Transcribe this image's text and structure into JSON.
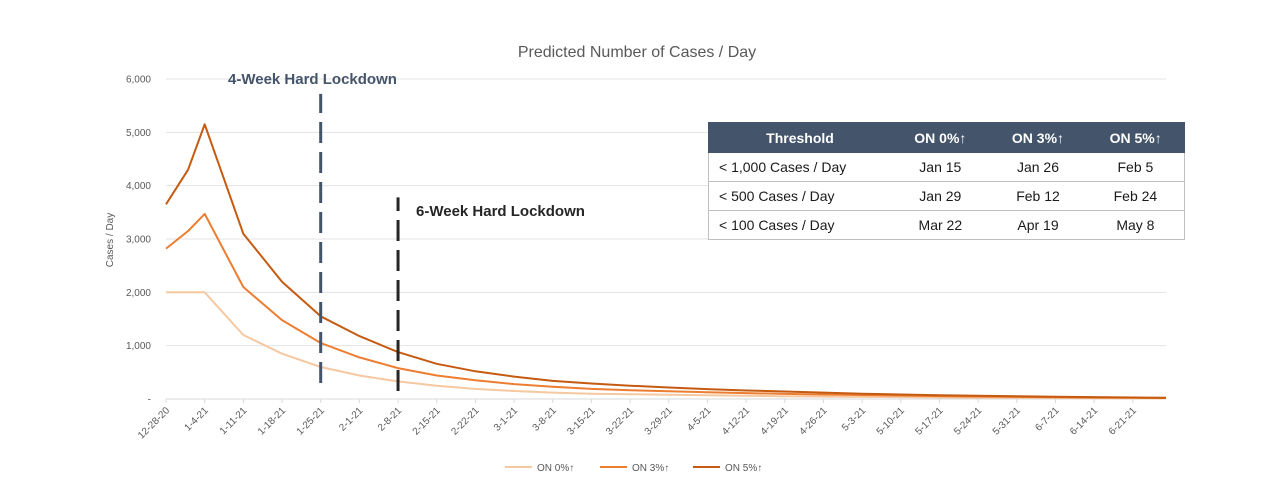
{
  "chart_data": {
    "type": "line",
    "title": "Predicted Number of Cases / Day",
    "xlabel": "",
    "ylabel": "Cases / Day",
    "ylim": [
      0,
      6000
    ],
    "y_ticks": [
      {
        "value": 0,
        "label": "-"
      },
      {
        "value": 1000,
        "label": "1,000"
      },
      {
        "value": 2000,
        "label": "2,000"
      },
      {
        "value": 3000,
        "label": "3,000"
      },
      {
        "value": 4000,
        "label": "4,000"
      },
      {
        "value": 5000,
        "label": "5,000"
      },
      {
        "value": 6000,
        "label": "6,000"
      }
    ],
    "x_tick_labels": [
      "12-28-20",
      "1-4-21",
      "1-11-21",
      "1-18-21",
      "1-25-21",
      "2-1-21",
      "2-8-21",
      "2-15-21",
      "2-22-21",
      "3-1-21",
      "3-8-21",
      "3-15-21",
      "3-22-21",
      "3-29-21",
      "4-5-21",
      "4-12-21",
      "4-19-21",
      "4-26-21",
      "5-3-21",
      "5-10-21",
      "5-17-21",
      "5-24-21",
      "5-31-21",
      "6-7-21",
      "6-14-21",
      "6-21-21"
    ],
    "x_start": "12-28-20",
    "x_end": "6-27-21",
    "grid": true,
    "legend_position": "bottom",
    "series": [
      {
        "name": "ON 0%↑",
        "color": "#f6c8a1",
        "points": [
          [
            "12-28-20",
            2000
          ],
          [
            "1-4-21",
            2000
          ],
          [
            "1-11-21",
            1200
          ],
          [
            "1-18-21",
            850
          ],
          [
            "1-25-21",
            600
          ],
          [
            "2-1-21",
            440
          ],
          [
            "2-8-21",
            330
          ],
          [
            "2-15-21",
            250
          ],
          [
            "2-22-21",
            190
          ],
          [
            "3-1-21",
            150
          ],
          [
            "3-8-21",
            120
          ],
          [
            "3-15-21",
            100
          ],
          [
            "3-22-21",
            90
          ],
          [
            "3-29-21",
            80
          ],
          [
            "4-5-21",
            70
          ],
          [
            "4-12-21",
            60
          ],
          [
            "4-19-21",
            50
          ],
          [
            "4-26-21",
            45
          ],
          [
            "5-3-21",
            40
          ],
          [
            "5-10-21",
            35
          ],
          [
            "5-17-21",
            30
          ],
          [
            "5-24-21",
            25
          ],
          [
            "5-31-21",
            22
          ],
          [
            "6-7-21",
            20
          ],
          [
            "6-14-21",
            17
          ],
          [
            "6-21-21",
            15
          ],
          [
            "6-27-21",
            12
          ]
        ]
      },
      {
        "name": "ON 3%↑",
        "color": "#ed7d31",
        "points": [
          [
            "12-28-20",
            2820
          ],
          [
            "1-1-21",
            3150
          ],
          [
            "1-4-21",
            3470
          ],
          [
            "1-11-21",
            2100
          ],
          [
            "1-18-21",
            1480
          ],
          [
            "1-25-21",
            1050
          ],
          [
            "2-1-21",
            780
          ],
          [
            "2-8-21",
            580
          ],
          [
            "2-15-21",
            440
          ],
          [
            "2-22-21",
            350
          ],
          [
            "3-1-21",
            280
          ],
          [
            "3-8-21",
            230
          ],
          [
            "3-15-21",
            190
          ],
          [
            "3-22-21",
            165
          ],
          [
            "3-29-21",
            145
          ],
          [
            "4-5-21",
            125
          ],
          [
            "4-12-21",
            110
          ],
          [
            "4-19-21",
            95
          ],
          [
            "4-26-21",
            85
          ],
          [
            "5-3-21",
            75
          ],
          [
            "5-10-21",
            65
          ],
          [
            "5-17-21",
            55
          ],
          [
            "5-24-21",
            47
          ],
          [
            "5-31-21",
            40
          ],
          [
            "6-7-21",
            33
          ],
          [
            "6-14-21",
            27
          ],
          [
            "6-21-21",
            22
          ],
          [
            "6-27-21",
            18
          ]
        ]
      },
      {
        "name": "ON 5%↑",
        "color": "#c55a11",
        "points": [
          [
            "12-28-20",
            3650
          ],
          [
            "1-1-21",
            4300
          ],
          [
            "1-4-21",
            5150
          ],
          [
            "1-11-21",
            3100
          ],
          [
            "1-18-21",
            2200
          ],
          [
            "1-25-21",
            1550
          ],
          [
            "2-1-21",
            1180
          ],
          [
            "2-8-21",
            880
          ],
          [
            "2-15-21",
            660
          ],
          [
            "2-22-21",
            520
          ],
          [
            "3-1-21",
            420
          ],
          [
            "3-8-21",
            340
          ],
          [
            "3-15-21",
            290
          ],
          [
            "3-22-21",
            250
          ],
          [
            "3-29-21",
            215
          ],
          [
            "4-5-21",
            185
          ],
          [
            "4-12-21",
            160
          ],
          [
            "4-19-21",
            140
          ],
          [
            "4-26-21",
            120
          ],
          [
            "5-3-21",
            100
          ],
          [
            "5-10-21",
            85
          ],
          [
            "5-17-21",
            72
          ],
          [
            "5-24-21",
            60
          ],
          [
            "5-31-21",
            50
          ],
          [
            "6-7-21",
            42
          ],
          [
            "6-14-21",
            35
          ],
          [
            "6-21-21",
            28
          ],
          [
            "6-27-21",
            22
          ]
        ]
      }
    ],
    "annotations": [
      {
        "text": "4-Week Hard Lockdown",
        "date": "1-25-21",
        "y_from": 300,
        "y_to": 5720,
        "color": "#44546a"
      },
      {
        "text": "6-Week Hard Lockdown",
        "date": "2-8-21",
        "y_from": 150,
        "y_to": 3780,
        "color": "#262626"
      }
    ]
  },
  "threshold_table": {
    "headers": [
      "Threshold",
      "ON 0%↑",
      "ON 3%↑",
      "ON 5%↑"
    ],
    "rows": [
      [
        "< 1,000 Cases / Day",
        "Jan 15",
        "Jan 26",
        "Feb 5"
      ],
      [
        "< 500 Cases / Day",
        "Jan 29",
        "Feb 12",
        "Feb 24"
      ],
      [
        "< 100 Cases / Day",
        "Mar 22",
        "Apr 19",
        "May 8"
      ]
    ]
  }
}
